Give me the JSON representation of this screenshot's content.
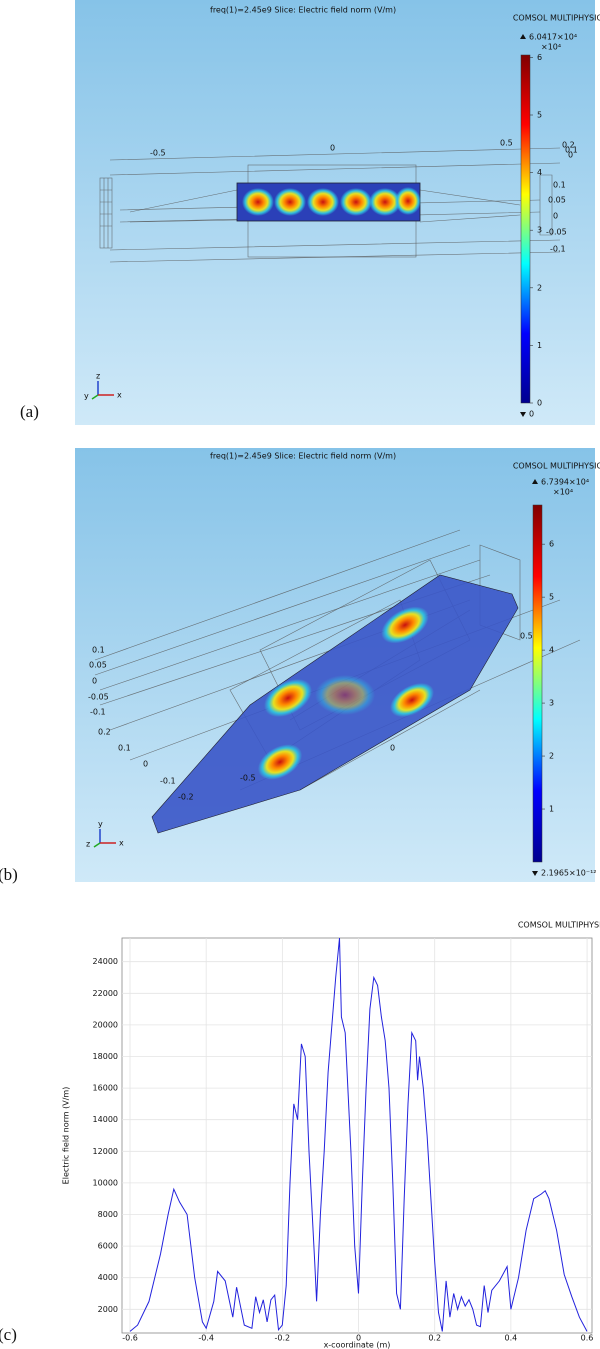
{
  "panel_labels": [
    "(a)",
    "(b)",
    "(c)"
  ],
  "chart_data": [
    {
      "type": "slice",
      "title": "freq(1)=2.45e9   Slice: Electric field norm (V/m)",
      "logo": "COMSOL MULTIPHYSICS",
      "max": {
        "value": 6.0417,
        "label": "6.0417×10⁴"
      },
      "unit_label": "×10⁴",
      "min": {
        "value": 0,
        "label": "0"
      },
      "ylim": [
        0,
        6.0417
      ],
      "yticks": [
        0,
        1,
        2,
        3,
        4,
        5,
        6
      ],
      "colorscale": [
        "#00008f",
        "#0000ff",
        "#00ffff",
        "#ffff00",
        "#ff0000",
        "#800000"
      ],
      "axis_labels": [
        "-0.5",
        "0",
        "0.5",
        "0.2",
        "0.1",
        "0",
        "0.1",
        "0.05",
        "0",
        "-0.05",
        "-0.1"
      ],
      "triad": [
        "z",
        "y",
        "x"
      ]
    },
    {
      "type": "slice",
      "title": "freq(1)=2.45e9   Slice: Electric field norm (V/m)",
      "logo": "COMSOL MULTIPHYSICS",
      "max": {
        "value": 6.7394,
        "label": "6.7394×10⁴"
      },
      "unit_label": "×10⁴",
      "min": {
        "value": 2.1965e-16,
        "label": "2.1965×10⁻¹²"
      },
      "ylim": [
        2.1965e-16,
        6.7394
      ],
      "yticks": [
        1,
        2,
        3,
        4,
        5,
        6
      ],
      "colorscale": [
        "#00008f",
        "#0000ff",
        "#00ffff",
        "#ffff00",
        "#ff0000",
        "#800000"
      ],
      "axis_labels": [
        "0.1",
        "0.05",
        "0",
        "-0.05",
        "-0.1",
        "0.2",
        "0.1",
        "0",
        "-0.1",
        "-0.2",
        "-0.5",
        "0",
        "0.5"
      ],
      "triad": [
        "y",
        "z",
        "x"
      ]
    },
    {
      "type": "line",
      "logo": "COMSOL MULTIPHYSICS",
      "x_label": "x-coordinate (m)",
      "y_label": "Electric field norm (V/m)",
      "color": "#2222dd",
      "grid": true,
      "xlim": [
        -0.621,
        0.613
      ],
      "ylim": [
        500,
        25500
      ],
      "xticks": [
        -0.6,
        -0.4,
        -0.2,
        0,
        0.2,
        0.4,
        0.6
      ],
      "yticks": [
        2000,
        4000,
        6000,
        8000,
        10000,
        12000,
        14000,
        16000,
        18000,
        20000,
        22000,
        24000
      ],
      "x": [
        -0.6,
        -0.58,
        -0.55,
        -0.52,
        -0.5,
        -0.485,
        -0.47,
        -0.45,
        -0.43,
        -0.41,
        -0.4,
        -0.38,
        -0.37,
        -0.35,
        -0.33,
        -0.32,
        -0.3,
        -0.28,
        -0.27,
        -0.26,
        -0.25,
        -0.24,
        -0.23,
        -0.22,
        -0.21,
        -0.2,
        -0.19,
        -0.18,
        -0.17,
        -0.16,
        -0.15,
        -0.14,
        -0.13,
        -0.115,
        -0.11,
        -0.1,
        -0.09,
        -0.08,
        -0.07,
        -0.06,
        -0.05,
        -0.045,
        -0.035,
        -0.02,
        -0.01,
        0,
        0.01,
        0.02,
        0.03,
        0.04,
        0.05,
        0.06,
        0.07,
        0.08,
        0.09,
        0.1,
        0.11,
        0.12,
        0.13,
        0.14,
        0.15,
        0.155,
        0.16,
        0.17,
        0.18,
        0.19,
        0.2,
        0.21,
        0.22,
        0.23,
        0.24,
        0.25,
        0.26,
        0.27,
        0.28,
        0.29,
        0.3,
        0.31,
        0.32,
        0.33,
        0.34,
        0.35,
        0.37,
        0.39,
        0.4,
        0.42,
        0.44,
        0.46,
        0.48,
        0.49,
        0.5,
        0.52,
        0.54,
        0.56,
        0.58,
        0.6
      ],
      "values": [
        600,
        1000,
        2500,
        5500,
        8000,
        9600,
        8800,
        8000,
        4000,
        1200,
        800,
        2500,
        4400,
        3800,
        1500,
        3400,
        1000,
        800,
        2800,
        1800,
        2600,
        1200,
        2600,
        2900,
        700,
        1000,
        3500,
        10000,
        15000,
        14000,
        18800,
        18000,
        12000,
        5000,
        2500,
        8000,
        12000,
        17000,
        20000,
        23000,
        25500,
        20500,
        19500,
        12000,
        6000,
        3000,
        10000,
        16000,
        21000,
        23000,
        22500,
        20500,
        19000,
        16000,
        10000,
        3000,
        2000,
        9000,
        15000,
        19500,
        19000,
        16500,
        18000,
        16000,
        13000,
        9000,
        5000,
        1800,
        600,
        3800,
        1500,
        3000,
        2000,
        2800,
        2200,
        2600,
        2000,
        1000,
        900,
        3500,
        1800,
        3200,
        3800,
        4700,
        2000,
        4000,
        7000,
        9000,
        9300,
        9500,
        9000,
        7000,
        4200,
        2800,
        1500,
        600
      ]
    }
  ]
}
